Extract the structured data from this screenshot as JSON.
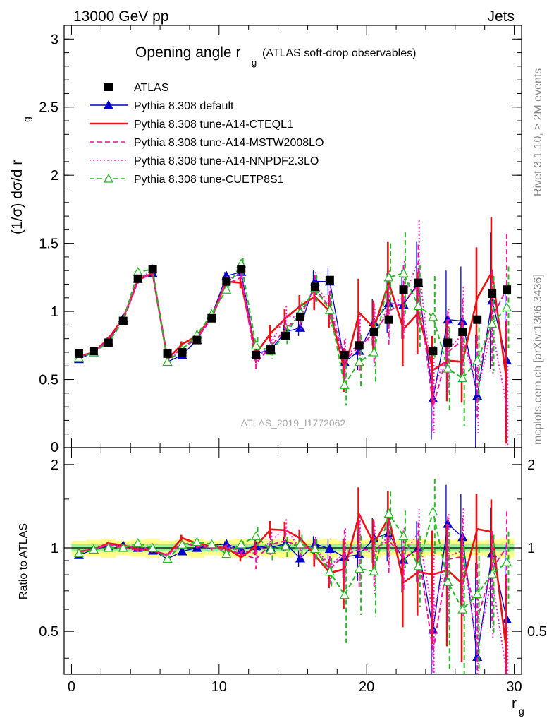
{
  "header": {
    "left": "13000 GeV pp",
    "right": "Jets"
  },
  "side": {
    "rivet": "Rivet 3.1.10, ≥ 2M events",
    "mcplots": "mcplots.cern.ch [arXiv:1306.3436]"
  },
  "chart_data": {
    "type": "line",
    "title_main": "Opening angle r",
    "title_sub": "g",
    "title_extra": "(ATLAS soft-drop observables)",
    "watermark": "ATLAS_2019_I1772062",
    "ylabel_main": "(1/σ) dσ/d r",
    "ylabel_sub": "g",
    "xlabel_main": "r",
    "xlabel_sub": "g",
    "ratio_ylabel": "Ratio to ATLAS",
    "xlim": [
      -0.5,
      30.5
    ],
    "ylim": [
      0,
      3.1
    ],
    "ratio_ylim": [
      0.35,
      2.3
    ],
    "xticks": [
      0,
      10,
      20,
      30
    ],
    "yticks": [
      0.5,
      1,
      1.5,
      2,
      2.5,
      3
    ],
    "ytick_labels": [
      "0.5",
      "1",
      "1.5",
      "2",
      "2.5",
      "3"
    ],
    "ytick_zero_label": "0",
    "ratio_yticks": [
      0.5,
      1,
      2
    ],
    "ratio_ytick_labels": [
      "0.5",
      "1",
      "2"
    ],
    "x": [
      0.5,
      1.5,
      2.5,
      3.5,
      4.5,
      5.5,
      6.5,
      7.5,
      8.5,
      9.5,
      10.5,
      11.5,
      12.5,
      13.5,
      14.5,
      15.5,
      16.5,
      17.5,
      18.5,
      19.5,
      20.5,
      21.5,
      22.5,
      23.5,
      24.5,
      25.5,
      26.5,
      27.5,
      28.5,
      29.5
    ],
    "data": {
      "name": "ATLAS",
      "values": [
        0.69,
        0.71,
        0.77,
        0.93,
        1.24,
        1.31,
        0.69,
        0.7,
        0.79,
        0.95,
        1.22,
        1.31,
        0.68,
        0.72,
        0.82,
        0.96,
        1.18,
        1.23,
        0.68,
        0.75,
        0.85,
        0.94,
        1.16,
        1.21,
        0.71,
        0.77,
        0.85,
        0.94,
        1.13,
        1.16
      ]
    },
    "series": [
      {
        "name": "Pythia 8.308 default",
        "color": "#0000cc",
        "style": "solid-triangle",
        "values": [
          0.65,
          0.7,
          0.78,
          0.95,
          1.24,
          1.28,
          0.63,
          0.68,
          0.79,
          0.97,
          1.26,
          1.29,
          0.69,
          0.72,
          0.85,
          0.88,
          1.22,
          1.22,
          0.63,
          0.71,
          0.92,
          1.06,
          1.05,
          1.21,
          0.36,
          0.94,
          0.93,
          0.38,
          1.08,
          0.64
        ],
        "errors": [
          0.01,
          0.01,
          0.01,
          0.01,
          0.02,
          0.02,
          0.01,
          0.01,
          0.02,
          0.02,
          0.03,
          0.03,
          0.03,
          0.04,
          0.05,
          0.06,
          0.08,
          0.1,
          0.1,
          0.14,
          0.17,
          0.22,
          0.25,
          0.3,
          0.3,
          0.36,
          0.4,
          0.45,
          0.5,
          0.55
        ]
      },
      {
        "name": "Pythia 8.308 tune-A14-CTEQL1",
        "color": "#ee1111",
        "style": "solid",
        "values": [
          0.67,
          0.7,
          0.8,
          0.95,
          1.23,
          1.28,
          0.65,
          0.76,
          0.82,
          0.96,
          1.22,
          1.21,
          0.69,
          0.84,
          0.95,
          1.04,
          1.11,
          1.0,
          0.57,
          0.99,
          0.88,
          1.21,
          0.87,
          0.99,
          0.57,
          0.64,
          0.63,
          1.1,
          1.29,
          0.48
        ],
        "errors": [
          0.01,
          0.01,
          0.01,
          0.01,
          0.02,
          0.02,
          0.01,
          0.02,
          0.02,
          0.02,
          0.03,
          0.04,
          0.05,
          0.06,
          0.07,
          0.08,
          0.1,
          0.12,
          0.16,
          0.25,
          0.2,
          0.3,
          0.27,
          0.3,
          0.25,
          0.3,
          0.3,
          0.37,
          0.4,
          0.45
        ]
      },
      {
        "name": "Pythia 8.308 tune-A14-MSTW2008LO",
        "color": "#ee1199",
        "style": "dashed",
        "values": [
          0.66,
          0.7,
          0.79,
          0.93,
          1.22,
          1.29,
          0.65,
          0.73,
          0.8,
          0.95,
          1.2,
          1.25,
          0.62,
          0.74,
          0.87,
          0.97,
          1.17,
          1.03,
          0.64,
          0.74,
          0.84,
          1.0,
          1.07,
          1.19,
          0.3,
          0.7,
          0.79,
          0.52,
          0.95,
          1.17
        ],
        "errors": [
          0.01,
          0.01,
          0.01,
          0.01,
          0.02,
          0.02,
          0.01,
          0.01,
          0.02,
          0.02,
          0.03,
          0.03,
          0.05,
          0.06,
          0.07,
          0.08,
          0.1,
          0.12,
          0.15,
          0.2,
          0.22,
          0.25,
          0.27,
          0.3,
          0.2,
          0.3,
          0.3,
          0.3,
          0.35,
          0.4
        ]
      },
      {
        "name": "Pythia 8.308 tune-A14-NNPDF2.3LO",
        "color": "#ee22cc",
        "style": "dotted",
        "values": [
          0.67,
          0.7,
          0.79,
          0.94,
          1.25,
          1.29,
          0.64,
          0.73,
          0.81,
          0.96,
          1.23,
          1.28,
          0.65,
          0.76,
          0.97,
          0.95,
          1.19,
          1.06,
          0.65,
          0.77,
          0.8,
          1.05,
          1.1,
          1.37,
          0.41,
          0.72,
          0.83,
          0.41,
          0.88,
          0.3
        ],
        "errors": [
          0.01,
          0.01,
          0.01,
          0.01,
          0.02,
          0.02,
          0.01,
          0.01,
          0.02,
          0.02,
          0.03,
          0.03,
          0.05,
          0.06,
          0.07,
          0.08,
          0.1,
          0.12,
          0.15,
          0.2,
          0.22,
          0.25,
          0.27,
          0.3,
          0.3,
          0.3,
          0.35,
          0.3,
          0.35,
          0.3
        ]
      },
      {
        "name": "Pythia 8.308 tune-CUETP8S1",
        "color": "#22bb22",
        "style": "dashed-open-triangle",
        "values": [
          0.66,
          0.7,
          0.77,
          0.93,
          1.29,
          1.31,
          0.63,
          0.72,
          0.83,
          0.98,
          1.16,
          1.35,
          0.75,
          0.71,
          0.83,
          0.99,
          1.17,
          1.01,
          0.46,
          0.63,
          0.7,
          1.25,
          1.28,
          1.04,
          0.96,
          0.58,
          0.51,
          0.64,
          0.91,
          1.03
        ],
        "errors": [
          0.01,
          0.01,
          0.01,
          0.01,
          0.02,
          0.02,
          0.01,
          0.01,
          0.02,
          0.02,
          0.03,
          0.04,
          0.06,
          0.06,
          0.07,
          0.08,
          0.1,
          0.12,
          0.15,
          0.2,
          0.22,
          0.25,
          0.3,
          0.3,
          0.3,
          0.3,
          0.35,
          0.3,
          0.35,
          0.3
        ]
      }
    ]
  }
}
